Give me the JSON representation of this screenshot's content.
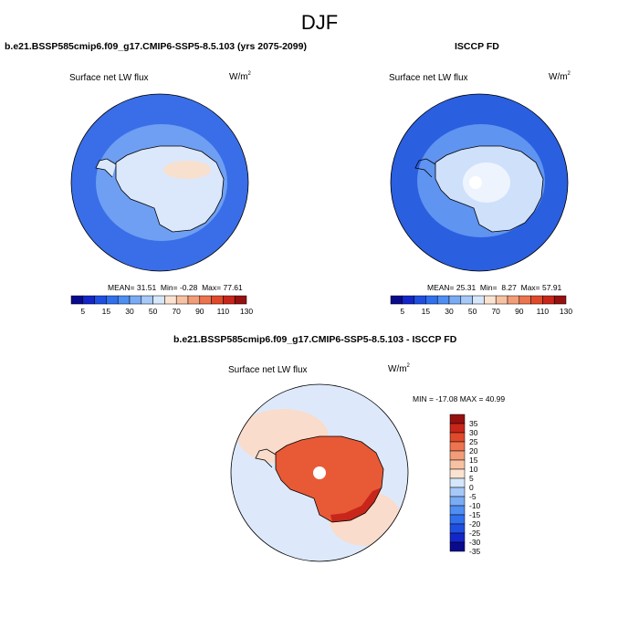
{
  "figure": {
    "season": "DJF"
  },
  "panels": {
    "model": {
      "title": "b.e21.BSSP585cmip6.f09_g17.CMIP6-SSP5-8.5.103 (yrs 2075-2099)",
      "variable": "Surface net LW flux",
      "units": "W/m",
      "units_exp": "2",
      "mean_label": "MEAN=",
      "mean": "31.51",
      "min_label": "Min=",
      "min": "-0.28",
      "max_label": "Max=",
      "max": "77.61"
    },
    "obs": {
      "title": "ISCCP FD",
      "variable": "Surface net LW flux",
      "units": "W/m",
      "units_exp": "2",
      "mean_label": "MEAN=",
      "mean": "25.31",
      "min_label": "Min=",
      "min": "8.27",
      "max_label": "Max=",
      "max": "57.91"
    },
    "diff": {
      "title": "b.e21.BSSP585cmip6.f09_g17.CMIP6-SSP5-8.5.103 - ISCCP FD",
      "variable": "Surface net LW flux",
      "units": "W/m",
      "units_exp": "2",
      "minmax": "MIN = -17.08 MAX =  40.99"
    }
  },
  "colorbars": {
    "abs": {
      "colors": [
        "#0a0a8c",
        "#1426c8",
        "#1f4fe0",
        "#3070ee",
        "#4f8ef2",
        "#7aacf5",
        "#a6c9f8",
        "#d6e6fb",
        "#fbe3d2",
        "#f7c2a4",
        "#f29d78",
        "#ec744f",
        "#e04a2b",
        "#c8261a",
        "#961010"
      ],
      "labels": [
        "5",
        "15",
        "30",
        "50",
        "70",
        "90",
        "110",
        "130"
      ]
    },
    "diff": {
      "colors": [
        "#0a0a8c",
        "#1426c8",
        "#1f4fe0",
        "#3070ee",
        "#4f8ef2",
        "#7aacf5",
        "#a6c9f8",
        "#d6e6fb",
        "#fbe3d2",
        "#f7c2a4",
        "#f29d78",
        "#ec744f",
        "#e04a2b",
        "#c8261a",
        "#961010"
      ],
      "labels": [
        "35",
        "30",
        "25",
        "20",
        "15",
        "10",
        "5",
        "0",
        "-5",
        "-10",
        "-15",
        "-20",
        "-25",
        "-30",
        "-35"
      ]
    }
  },
  "map_colors": {
    "ocean_model": "#3a6ee8",
    "ocean_model_inner": "#6f9ff2",
    "land_model": "#dbe7fb",
    "land_model_warm": "#f8e0cf",
    "ocean_obs": "#2a5fe0",
    "ocean_obs_inner": "#5f94f0",
    "land_obs": "#cfe0fb",
    "land_obs_light": "#eef4fe",
    "diff_ocean": "#dde9fb",
    "diff_ocean_warm": "#f9dccb",
    "diff_land": "#e85a36",
    "diff_land_dark": "#c8261a",
    "coast": "#000000"
  }
}
